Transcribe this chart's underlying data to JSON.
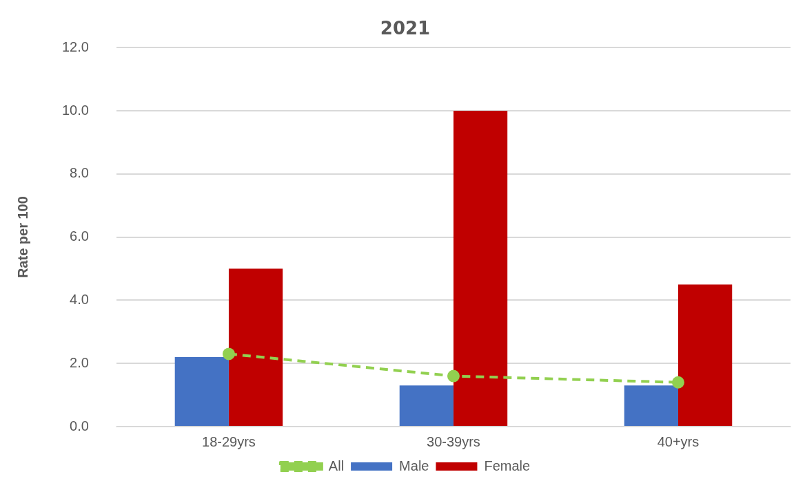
{
  "chart_data": {
    "type": "bar",
    "title": "2021",
    "ylabel": "Rate per 100",
    "categories": [
      "18-29yrs",
      "30-39yrs",
      "40+yrs"
    ],
    "series": [
      {
        "name": "Male",
        "color": "#4472c4",
        "values": [
          2.2,
          1.3,
          1.3
        ]
      },
      {
        "name": "Female",
        "color": "#c00000",
        "values": [
          5.0,
          10.0,
          4.5
        ]
      },
      {
        "name": "All",
        "type": "line",
        "color": "#92d050",
        "values": [
          2.3,
          1.6,
          1.4
        ],
        "marker": "circle",
        "line_style": "dashed"
      }
    ],
    "ylim": [
      0,
      12
    ],
    "yticks": [
      {
        "value": 0,
        "label": "0.0"
      },
      {
        "value": 2,
        "label": "2.0"
      },
      {
        "value": 4,
        "label": "4.0"
      },
      {
        "value": 6,
        "label": "6.0"
      },
      {
        "value": 8,
        "label": "8.0"
      },
      {
        "value": 10,
        "label": "10.0"
      },
      {
        "value": 12,
        "label": "12.0"
      }
    ],
    "grid": "y",
    "legend": "bottom"
  }
}
